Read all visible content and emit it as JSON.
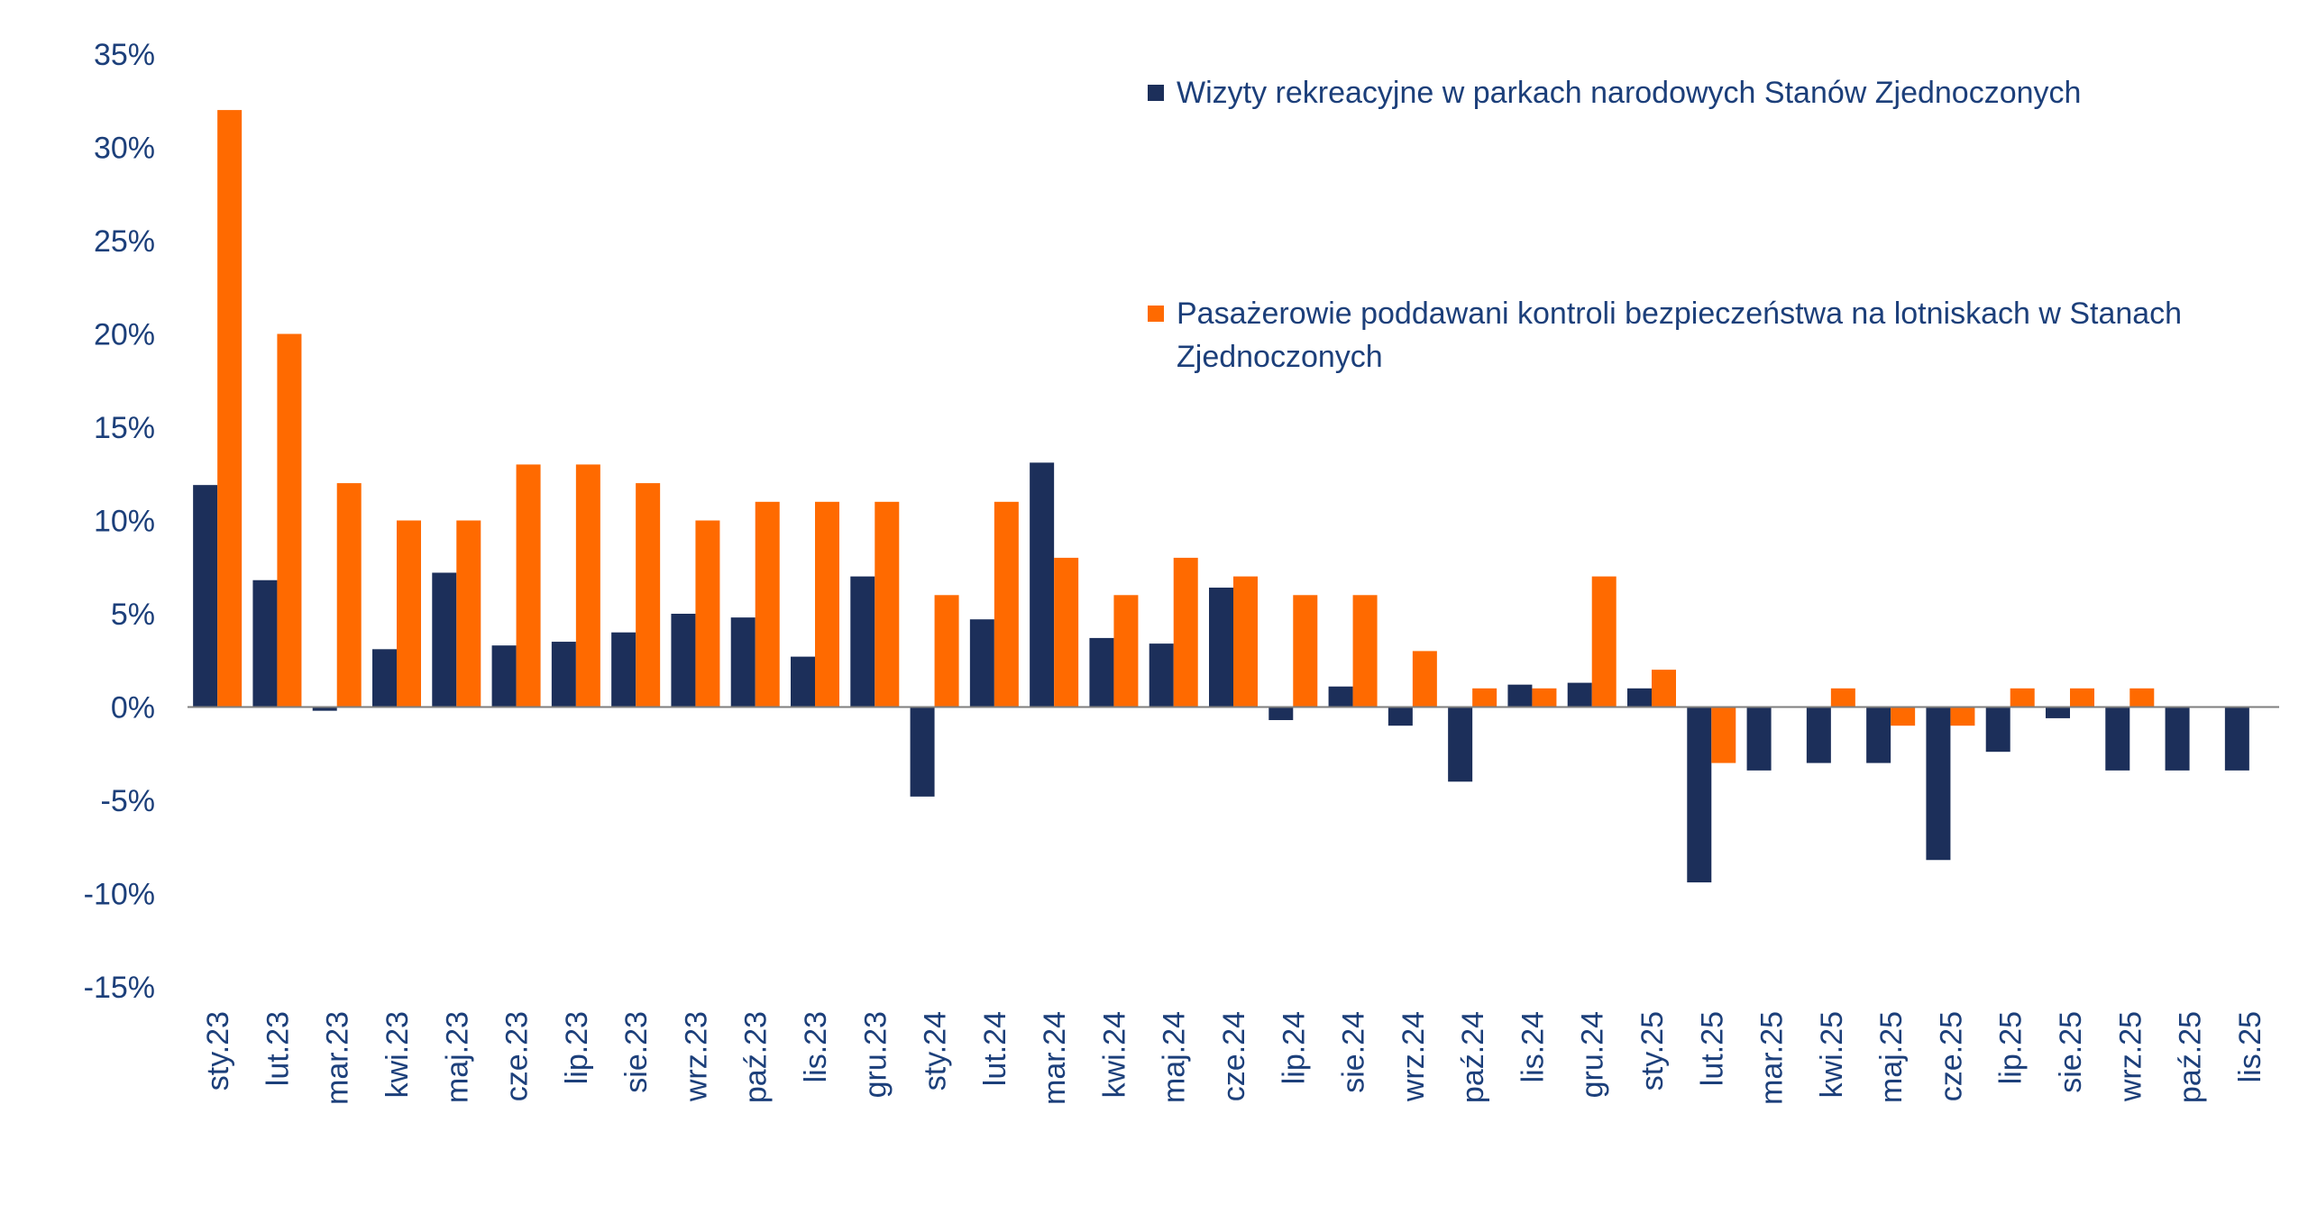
{
  "chart_data": {
    "type": "bar",
    "categories": [
      "sty.23",
      "lut.23",
      "mar.23",
      "kwi.23",
      "maj.23",
      "cze.23",
      "lip.23",
      "sie.23",
      "wrz.23",
      "paź.23",
      "lis.23",
      "gru.23",
      "sty.24",
      "lut.24",
      "mar.24",
      "kwi.24",
      "maj.24",
      "cze.24",
      "lip.24",
      "sie.24",
      "wrz.24",
      "paź.24",
      "lis.24",
      "gru.24",
      "sty.25",
      "lut.25",
      "mar.25",
      "kwi.25",
      "maj.25",
      "cze.25",
      "lip.25",
      "sie.25",
      "wrz.25",
      "paź.25",
      "lis.25"
    ],
    "series": [
      {
        "name": "Wizyty rekreacyjne w parkach narodowych Stanów Zjednoczonych",
        "color": "#1c2f5a",
        "values": [
          11.9,
          6.8,
          -0.2,
          3.1,
          7.2,
          3.3,
          3.5,
          4.0,
          5.0,
          4.8,
          2.7,
          7.0,
          -4.8,
          4.7,
          13.1,
          3.7,
          3.4,
          6.4,
          -0.7,
          1.1,
          -1.0,
          -4.0,
          1.2,
          1.3,
          1.0,
          -9.4,
          -3.4,
          -3.0,
          -3.0,
          -8.2,
          -2.4,
          -0.6,
          -3.4,
          -3.4,
          -3.4
        ]
      },
      {
        "name": "Pasażerowie poddawani kontroli bezpieczeństwa na lotniskach w Stanach Zjednoczonych",
        "color": "#ff6a00",
        "values": [
          32,
          20,
          12,
          10,
          10,
          13,
          13,
          12,
          10,
          11,
          11,
          11,
          6,
          11,
          8,
          6,
          8,
          7,
          6,
          6,
          3,
          1,
          1,
          7,
          2,
          -3,
          0,
          1,
          -1,
          -1,
          1,
          1,
          1,
          0,
          0
        ]
      }
    ],
    "y_ticks": [
      "35%",
      "30%",
      "25%",
      "20%",
      "15%",
      "10%",
      "5%",
      "0%",
      "-5%",
      "-10%",
      "-15%"
    ],
    "ylim": [
      -15,
      35
    ],
    "ytick_step": 5,
    "title": "",
    "xlabel": "",
    "ylabel": "",
    "grid": false,
    "legend_position": "top-right",
    "text_color": "#1c3f7a",
    "axis_color": "#7f7f7f"
  },
  "legend": {
    "items": [
      {
        "label": "Wizyty rekreacyjne w parkach narodowych Stanów Zjednoczonych",
        "color": "#1c2f5a"
      },
      {
        "label": "Pasażerowie poddawani kontroli bezpieczeństwa na lotniskach w Stanach Zjednoczonych",
        "color": "#ff6a00"
      }
    ]
  }
}
